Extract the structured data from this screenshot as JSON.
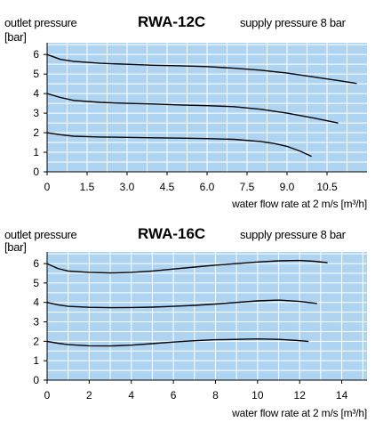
{
  "chart_data": [
    {
      "type": "line",
      "title": "RWA-12C",
      "ylabel": "outlet pressure",
      "yunit": "[bar]",
      "note": "supply pressure 8 bar",
      "xlabel": "water flow rate at 2 m/s [m³/h]",
      "xlim": [
        0,
        12
      ],
      "ylim": [
        0,
        6.6
      ],
      "xticks": [
        0,
        1.5,
        3.0,
        4.5,
        6.0,
        7.5,
        9.0,
        10.5
      ],
      "xtick_labels": [
        "0",
        "1.5",
        "3.0",
        "4.5",
        "6.0",
        "7.5",
        "9.0",
        "10.5"
      ],
      "yticks": [
        0,
        1,
        2,
        3,
        4,
        5,
        6
      ],
      "ytick_labels": [
        "0",
        "1",
        "2",
        "3",
        "4",
        "5",
        "6"
      ],
      "grid": true,
      "background": "#aed4f2",
      "series": [
        {
          "x": [
            0,
            0.5,
            1,
            2,
            3,
            4,
            5,
            6,
            7,
            8,
            9,
            10,
            11,
            11.6
          ],
          "y": [
            6.0,
            5.75,
            5.65,
            5.55,
            5.5,
            5.45,
            5.42,
            5.38,
            5.3,
            5.2,
            5.05,
            4.85,
            4.65,
            4.52
          ]
        },
        {
          "x": [
            0,
            0.5,
            1,
            2,
            3,
            4,
            5,
            6,
            7,
            8,
            9,
            10,
            10.9
          ],
          "y": [
            4.0,
            3.8,
            3.65,
            3.55,
            3.5,
            3.47,
            3.42,
            3.38,
            3.33,
            3.2,
            3.0,
            2.75,
            2.5
          ]
        },
        {
          "x": [
            0,
            0.5,
            1,
            2,
            3,
            4,
            5,
            6,
            7,
            8,
            8.5,
            9,
            9.5,
            9.9
          ],
          "y": [
            2.0,
            1.9,
            1.82,
            1.78,
            1.76,
            1.74,
            1.72,
            1.7,
            1.66,
            1.55,
            1.45,
            1.3,
            1.05,
            0.8
          ]
        }
      ]
    },
    {
      "type": "line",
      "title": "RWA-16C",
      "ylabel": "outlet pressure",
      "yunit": "[bar]",
      "note": "supply pressure 8 bar",
      "xlabel": "water flow rate at 2 m/s [m³/h]",
      "xlim": [
        0,
        15.2
      ],
      "ylim": [
        0,
        6.6
      ],
      "xticks": [
        0,
        2,
        4,
        6,
        8,
        10,
        12,
        14
      ],
      "xtick_labels": [
        "0",
        "2",
        "4",
        "6",
        "8",
        "10",
        "12",
        "14"
      ],
      "yticks": [
        0,
        1,
        2,
        3,
        4,
        5,
        6
      ],
      "ytick_labels": [
        "0",
        "1",
        "2",
        "3",
        "4",
        "5",
        "6"
      ],
      "grid": true,
      "background": "#aed4f2",
      "series": [
        {
          "x": [
            0,
            0.5,
            1,
            2,
            3,
            4,
            5,
            6,
            7,
            8,
            9,
            10,
            11,
            12,
            12.7,
            13.3
          ],
          "y": [
            6.0,
            5.75,
            5.62,
            5.55,
            5.52,
            5.55,
            5.62,
            5.72,
            5.82,
            5.92,
            6.0,
            6.08,
            6.14,
            6.16,
            6.12,
            6.05
          ]
        },
        {
          "x": [
            0,
            0.5,
            1,
            2,
            3,
            4,
            5,
            6,
            7,
            8,
            9,
            10,
            11,
            12,
            12.8
          ],
          "y": [
            4.0,
            3.88,
            3.8,
            3.75,
            3.73,
            3.74,
            3.76,
            3.8,
            3.85,
            3.92,
            4.0,
            4.08,
            4.12,
            4.05,
            3.95
          ]
        },
        {
          "x": [
            0,
            0.5,
            1,
            2,
            3,
            4,
            5,
            6,
            7,
            8,
            9,
            10,
            11,
            11.8,
            12.4
          ],
          "y": [
            2.0,
            1.9,
            1.83,
            1.77,
            1.76,
            1.8,
            1.88,
            1.96,
            2.03,
            2.08,
            2.1,
            2.12,
            2.1,
            2.05,
            2.0
          ]
        }
      ]
    }
  ]
}
